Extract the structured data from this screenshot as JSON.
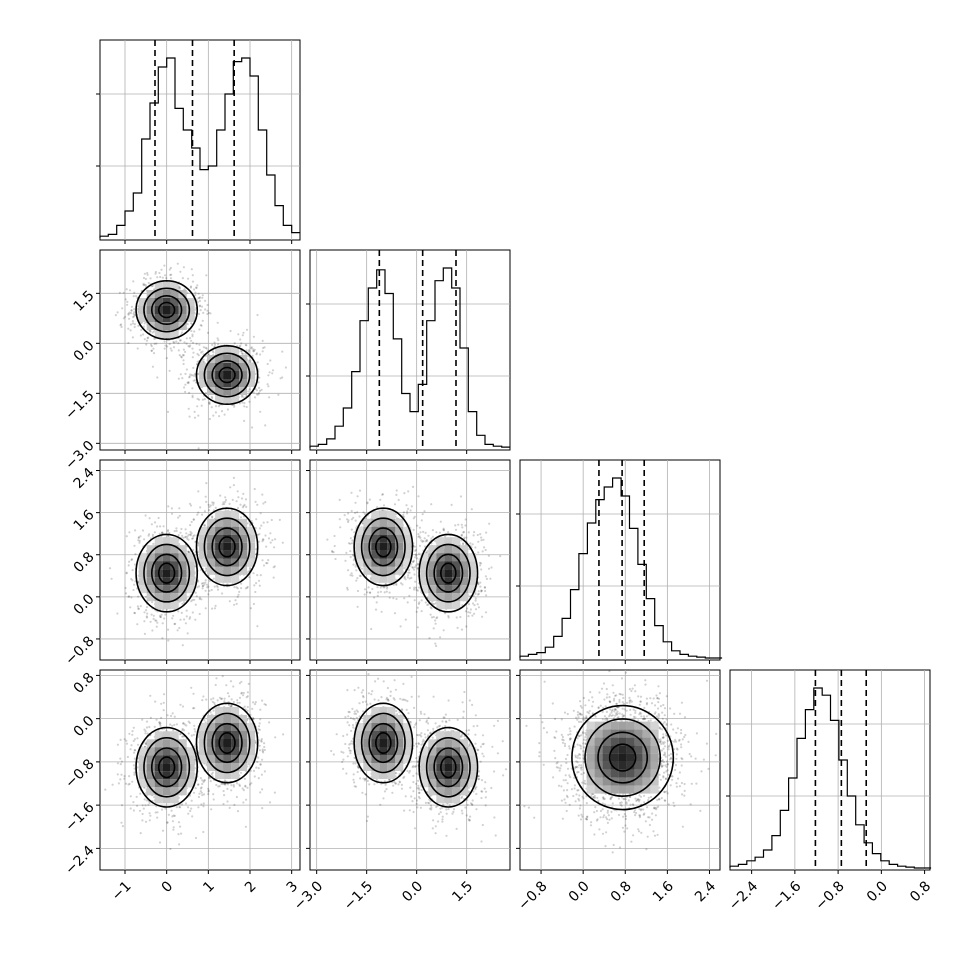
{
  "chart_data": {
    "type": "corner",
    "variables": 4,
    "grid": true,
    "quantiles": [
      0.16,
      0.5,
      0.84
    ],
    "axes": [
      {
        "index": 0,
        "range": [
          -1.6,
          3.2
        ],
        "ticks": [
          -1,
          0,
          1,
          2,
          3
        ],
        "tick_labels": [
          "−1",
          "0",
          "1",
          "2",
          "3"
        ]
      },
      {
        "index": 1,
        "range": [
          -3.2,
          2.8
        ],
        "ticks": [
          -3.0,
          -1.5,
          0.0,
          1.5
        ],
        "tick_labels": [
          "−3.0",
          "−1.5",
          "0.0",
          "1.5"
        ]
      },
      {
        "index": 2,
        "range": [
          -1.2,
          2.6
        ],
        "ticks": [
          -0.8,
          0.0,
          0.8,
          1.6,
          2.4
        ],
        "tick_labels": [
          "−0.8",
          "0.0",
          "0.8",
          "1.6",
          "2.4"
        ]
      },
      {
        "index": 3,
        "range": [
          -2.8,
          0.9
        ],
        "ticks": [
          -2.4,
          -1.6,
          -0.8,
          0.0,
          0.8
        ],
        "tick_labels": [
          "−2.4",
          "−1.6",
          "−0.8",
          "0.0",
          "0.8"
        ]
      }
    ],
    "marginals": [
      {
        "index": 0,
        "quantile_values": [
          -0.28,
          0.62,
          1.62
        ],
        "bin_start": -1.6,
        "bin_width": 0.2,
        "counts": [
          0.01,
          0.02,
          0.07,
          0.15,
          0.25,
          0.55,
          0.75,
          0.95,
          1.0,
          0.72,
          0.6,
          0.5,
          0.38,
          0.4,
          0.6,
          0.8,
          0.98,
          1.0,
          0.9,
          0.6,
          0.35,
          0.18,
          0.07,
          0.03
        ]
      },
      {
        "index": 1,
        "quantile_values": [
          -1.12,
          0.18,
          1.18
        ],
        "bin_start": -3.2,
        "bin_width": 0.25,
        "counts": [
          0.01,
          0.02,
          0.05,
          0.12,
          0.22,
          0.42,
          0.7,
          0.88,
          0.98,
          0.85,
          0.6,
          0.3,
          0.2,
          0.35,
          0.7,
          0.92,
          0.99,
          0.88,
          0.55,
          0.2,
          0.07,
          0.02,
          0.01,
          0.005
        ]
      },
      {
        "index": 2,
        "quantile_values": [
          0.3,
          0.74,
          1.16
        ],
        "bin_start": -1.2,
        "bin_width": 0.16,
        "counts": [
          0.01,
          0.02,
          0.03,
          0.06,
          0.12,
          0.22,
          0.38,
          0.58,
          0.75,
          0.88,
          0.95,
          1.0,
          0.9,
          0.72,
          0.52,
          0.33,
          0.18,
          0.09,
          0.04,
          0.02,
          0.01,
          0.005,
          0.0,
          0.0
        ]
      },
      {
        "index": 3,
        "quantile_values": [
          -1.22,
          -0.74,
          -0.28
        ],
        "bin_start": -2.8,
        "bin_width": 0.155,
        "counts": [
          0.01,
          0.02,
          0.04,
          0.06,
          0.1,
          0.18,
          0.32,
          0.5,
          0.72,
          0.88,
          1.0,
          0.96,
          0.82,
          0.6,
          0.4,
          0.24,
          0.14,
          0.08,
          0.04,
          0.02,
          0.01,
          0.005,
          0.0,
          0.0
        ]
      }
    ],
    "joint_modes": [
      {
        "x": 0,
        "y": 1,
        "modes": [
          {
            "mx": 0.0,
            "my": 1.0,
            "sx": 0.42,
            "sy": 0.5
          },
          {
            "mx": 1.45,
            "my": -0.95,
            "sx": 0.42,
            "sy": 0.5
          }
        ]
      },
      {
        "x": 0,
        "y": 2,
        "modes": [
          {
            "mx": 0.0,
            "my": 0.45,
            "sx": 0.42,
            "sy": 0.42
          },
          {
            "mx": 1.45,
            "my": 0.95,
            "sx": 0.42,
            "sy": 0.42
          }
        ]
      },
      {
        "x": 0,
        "y": 3,
        "modes": [
          {
            "mx": 0.0,
            "my": -0.9,
            "sx": 0.42,
            "sy": 0.42
          },
          {
            "mx": 1.45,
            "my": -0.45,
            "sx": 0.42,
            "sy": 0.42
          }
        ]
      },
      {
        "x": 1,
        "y": 2,
        "modes": [
          {
            "mx": -1.0,
            "my": 0.95,
            "sx": 0.5,
            "sy": 0.42
          },
          {
            "mx": 0.95,
            "my": 0.45,
            "sx": 0.5,
            "sy": 0.42
          }
        ]
      },
      {
        "x": 1,
        "y": 3,
        "modes": [
          {
            "mx": -1.0,
            "my": -0.45,
            "sx": 0.5,
            "sy": 0.42
          },
          {
            "mx": 0.95,
            "my": -0.9,
            "sx": 0.5,
            "sy": 0.42
          }
        ]
      },
      {
        "x": 2,
        "y": 3,
        "modes": [
          {
            "mx": 0.75,
            "my": -0.72,
            "sx": 0.55,
            "sy": 0.55
          }
        ]
      }
    ]
  }
}
